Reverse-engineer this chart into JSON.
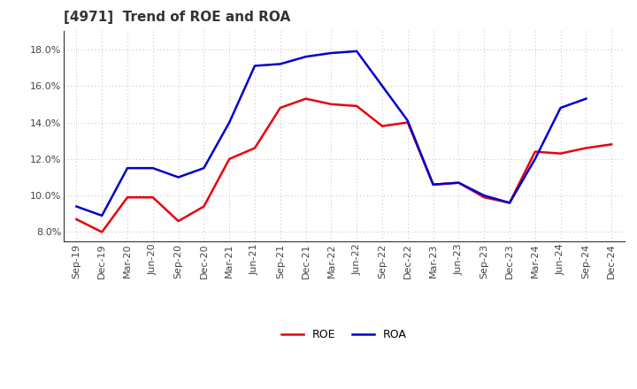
{
  "title": "[4971]  Trend of ROE and ROA",
  "x_labels": [
    "Sep-19",
    "Dec-19",
    "Mar-20",
    "Jun-20",
    "Sep-20",
    "Dec-20",
    "Mar-21",
    "Jun-21",
    "Sep-21",
    "Dec-21",
    "Mar-22",
    "Jun-22",
    "Sep-22",
    "Dec-22",
    "Mar-23",
    "Jun-23",
    "Sep-23",
    "Dec-23",
    "Mar-24",
    "Jun-24",
    "Sep-24",
    "Dec-24"
  ],
  "roe": [
    0.087,
    0.08,
    0.099,
    0.099,
    0.086,
    0.094,
    0.12,
    0.126,
    0.148,
    0.153,
    0.15,
    0.149,
    0.138,
    0.14,
    0.106,
    0.107,
    0.099,
    0.096,
    0.124,
    0.123,
    0.126,
    0.128
  ],
  "roa": [
    0.094,
    0.089,
    0.115,
    0.115,
    0.11,
    0.115,
    0.14,
    0.171,
    0.172,
    0.176,
    0.178,
    0.179,
    0.16,
    0.141,
    0.106,
    0.107,
    0.1,
    0.096,
    0.12,
    0.148,
    0.153,
    null
  ],
  "roe_color": "#e8000d",
  "roa_color": "#0000cc",
  "ylim": [
    0.075,
    0.19
  ],
  "yticks": [
    0.08,
    0.1,
    0.12,
    0.14,
    0.16,
    0.18
  ],
  "background_color": "#ffffff",
  "grid_color": "#bbbbbb",
  "title_fontsize": 11,
  "legend_fontsize": 9,
  "tick_fontsize": 8,
  "line_width": 1.8
}
